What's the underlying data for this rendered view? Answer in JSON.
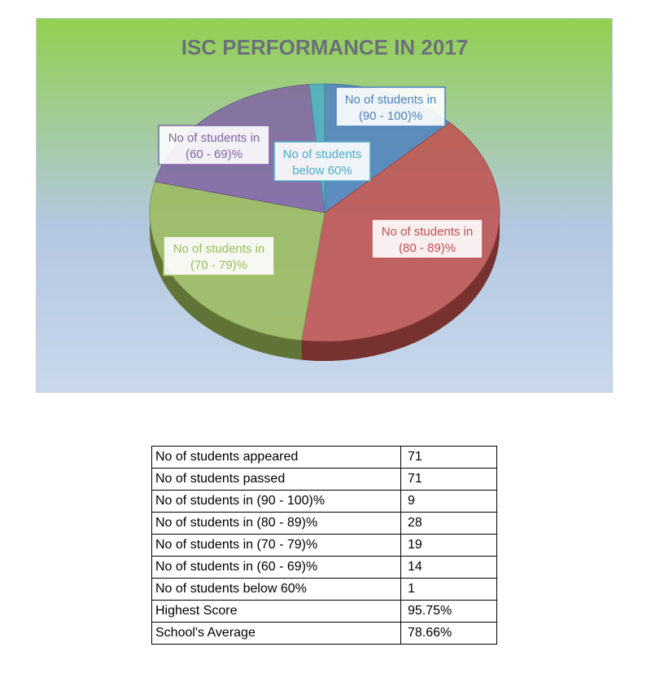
{
  "chart_data": {
    "type": "pie",
    "title": "ISC PERFORMANCE IN 2017",
    "slices": [
      {
        "label": "No of students in (90 - 100)%",
        "value": 9,
        "color": "#4f81bd"
      },
      {
        "label": "No of students in (80 - 89)%",
        "value": 28,
        "color": "#c0504d"
      },
      {
        "label": "No of students in (70 - 79)%",
        "value": 19,
        "color": "#9bbb59"
      },
      {
        "label": "No of students in (60 - 69)%",
        "value": 14,
        "color": "#8064a2"
      },
      {
        "label": "No of students below 60%",
        "value": 1,
        "color": "#4bacc6"
      }
    ],
    "callouts": [
      [
        "No of students in",
        "(90 - 100)%"
      ],
      [
        "No of students in",
        "(80 - 89)%"
      ],
      [
        "No of students in",
        "(70 - 79)%"
      ],
      [
        "No of students in",
        "(60 - 69)%"
      ],
      [
        "No of students",
        "below 60%"
      ]
    ],
    "background_gradient": [
      "#92d050",
      "#b3c7e0",
      "#c9d8ec"
    ]
  },
  "table": {
    "rows": [
      {
        "label": "No of students appeared",
        "value": "71"
      },
      {
        "label": "No of students passed",
        "value": "71"
      },
      {
        "label": "No of students in (90 - 100)%",
        "value": "9"
      },
      {
        "label": "No of students in (80 - 89)%",
        "value": "28"
      },
      {
        "label": "No of students in (70 - 79)%",
        "value": "19"
      },
      {
        "label": "No of students in (60 - 69)%",
        "value": "14"
      },
      {
        "label": "No of students below 60%",
        "value": "1"
      },
      {
        "label": "Highest Score",
        "value": "95.75%"
      },
      {
        "label": "School's Average",
        "value": "78.66%"
      }
    ]
  }
}
